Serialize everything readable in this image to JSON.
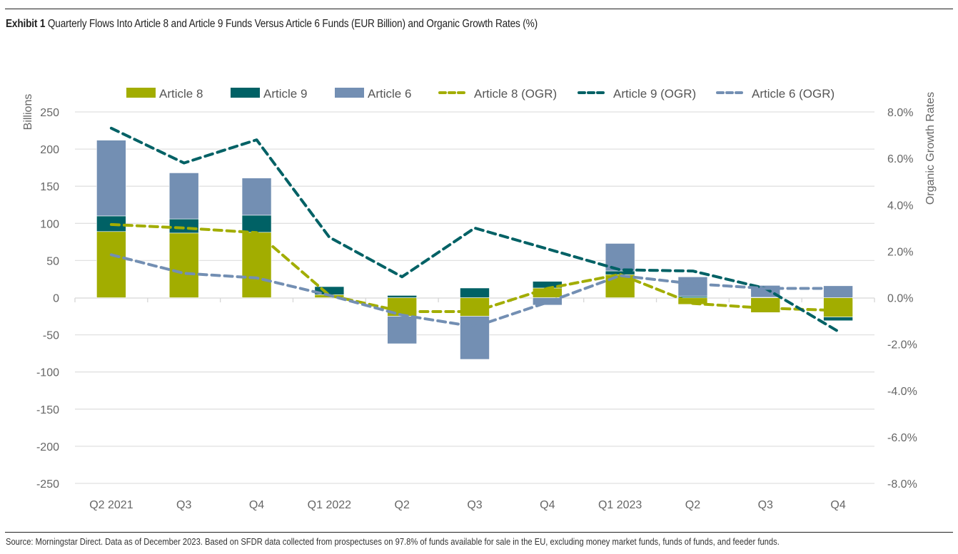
{
  "header": {
    "exhibit_label": "Exhibit 1",
    "title": "Quarterly Flows Into Article 8 and Article 9 Funds Versus Article 6 Funds (EUR Billion) and Organic Growth Rates (%)"
  },
  "footer": {
    "source": "Source: Morningstar Direct. Data as of December 2023. Based on SFDR data collected from prospectuses on 97.8% of funds available for sale in the EU, excluding money market funds, funds of funds, and feeder funds."
  },
  "colors": {
    "article8": "#A2AD00",
    "article9": "#006165",
    "article6": "#738FB3",
    "grid": "#E1E1E1",
    "tick_text": "#666666"
  },
  "chart_data": {
    "type": "bar",
    "stacked": true,
    "title": "Quarterly Flows Into Article 8 and Article 9 Funds Versus Article 6 Funds (EUR Billion) and Organic Growth Rates (%)",
    "categories": [
      "Q2 2021",
      "Q3",
      "Q4",
      "Q1 2022",
      "Q2",
      "Q3",
      "Q4",
      "Q1 2023",
      "Q2",
      "Q3",
      "Q4"
    ],
    "ylabel": "Billions",
    "ylabel_right": "Organic Growth Rates",
    "ylim": [
      -250,
      250
    ],
    "yticks": [
      250,
      200,
      150,
      100,
      50,
      0,
      -50,
      -100,
      -150,
      -200,
      -250
    ],
    "ylim_right": [
      -8.0,
      8.0
    ],
    "yticks_right": [
      "8.0%",
      "6.0%",
      "4.0%",
      "2.0%",
      "0.0%",
      "-2.0%",
      "-4.0%",
      "-6.0%",
      "-8.0%"
    ],
    "yticks_right_values": [
      8,
      6,
      4,
      2,
      0,
      -2,
      -4,
      -6,
      -8
    ],
    "grid": true,
    "legend_position": "top",
    "series": [
      {
        "name": "Article 8",
        "kind": "bar",
        "axis": "left",
        "color_key": "article8",
        "values": [
          89,
          87,
          88,
          4,
          -25,
          -25,
          13,
          31,
          -9,
          -20,
          -26
        ]
      },
      {
        "name": "Article 9",
        "kind": "bar",
        "axis": "left",
        "color_key": "article9",
        "values": [
          21,
          19,
          23,
          11,
          3,
          13,
          9,
          5,
          2,
          0.5,
          -5
        ]
      },
      {
        "name": "Article 6",
        "kind": "bar",
        "axis": "left",
        "color_key": "article6",
        "values": [
          102,
          62,
          50,
          0,
          -37,
          -58,
          -10,
          37,
          26,
          16,
          16
        ]
      },
      {
        "name": "Article 8 (OGR)",
        "kind": "line",
        "axis": "right",
        "color_key": "article8",
        "values": [
          3.15,
          3.0,
          2.8,
          0.1,
          -0.6,
          -0.6,
          0.4,
          1.0,
          -0.25,
          -0.45,
          -0.55
        ]
      },
      {
        "name": "Article 9 (OGR)",
        "kind": "line",
        "axis": "right",
        "color_key": "article9",
        "values": [
          7.3,
          5.8,
          6.8,
          2.6,
          0.9,
          3.0,
          2.1,
          1.2,
          1.15,
          0.4,
          -1.45
        ]
      },
      {
        "name": "Article 6 (OGR)",
        "kind": "line",
        "axis": "right",
        "color_key": "article6",
        "values": [
          1.85,
          1.05,
          0.85,
          0.1,
          -0.75,
          -1.25,
          -0.2,
          0.95,
          0.6,
          0.4,
          0.4
        ]
      }
    ]
  }
}
